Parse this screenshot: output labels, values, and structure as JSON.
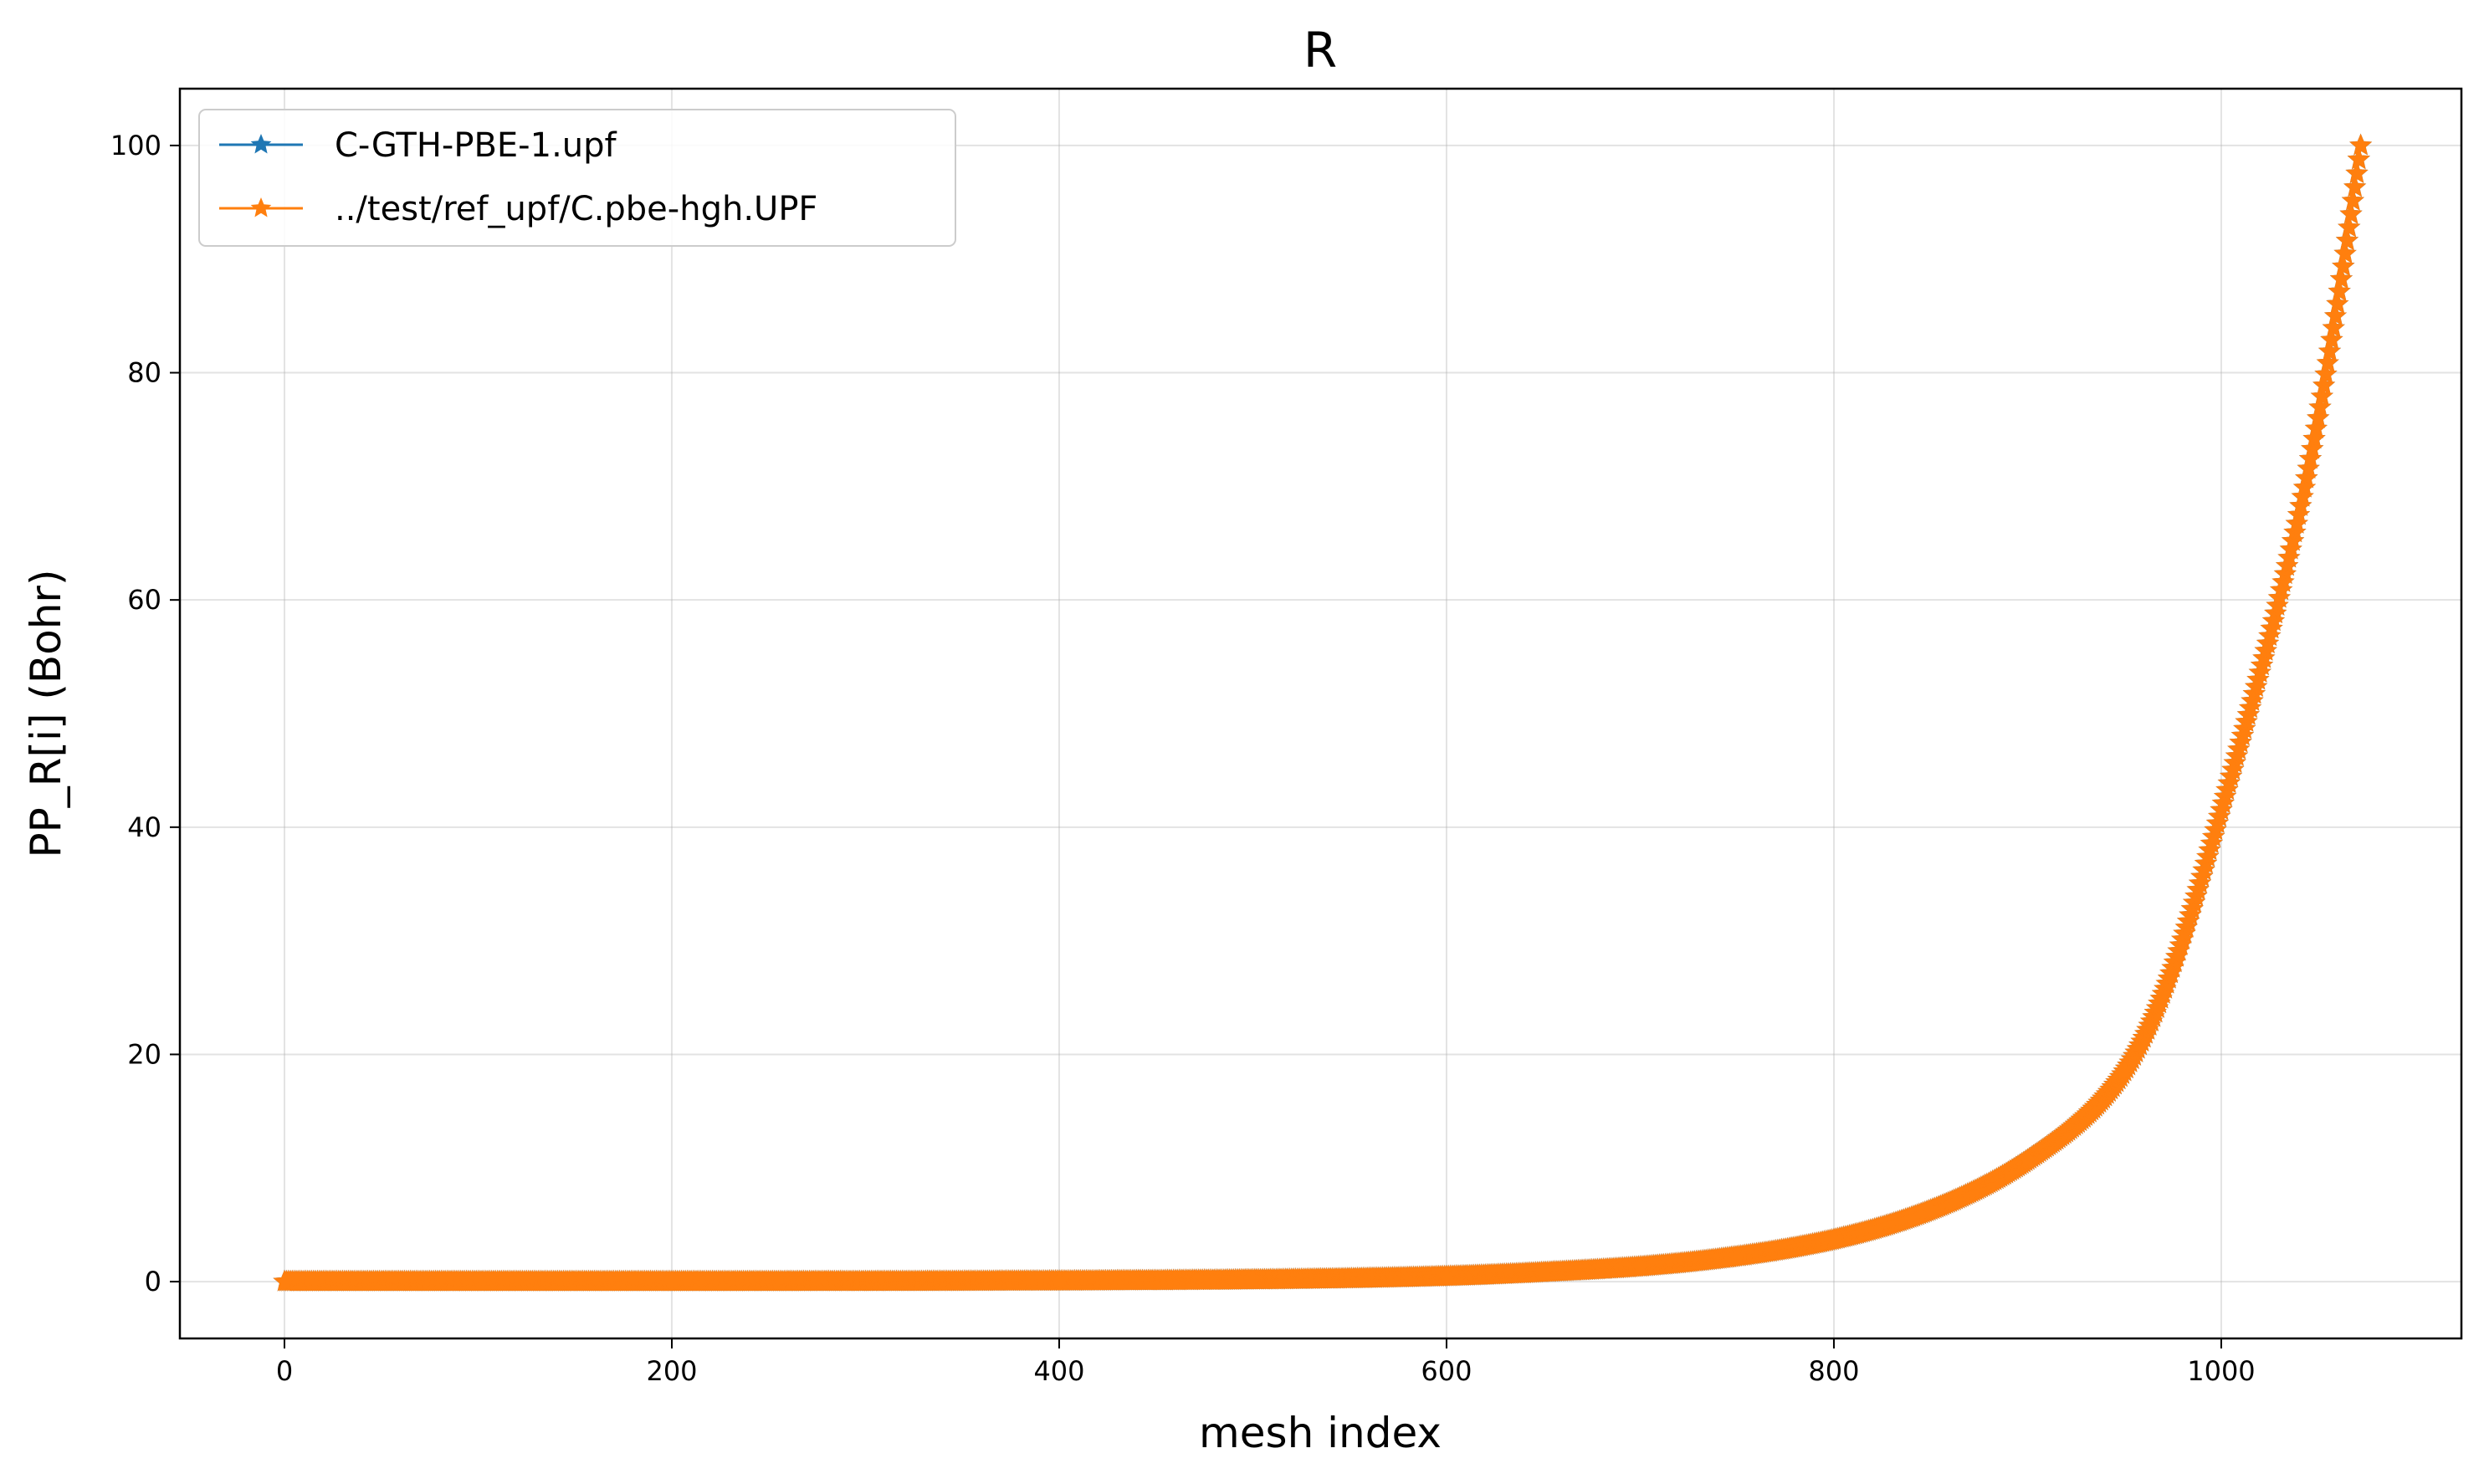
{
  "chart_data": {
    "type": "line",
    "title": "R",
    "xlabel": "mesh index",
    "ylabel": "PP_R[i] (Bohr)",
    "xlim": [
      -54,
      1124
    ],
    "ylim": [
      -5,
      105
    ],
    "xticks": [
      0,
      200,
      400,
      600,
      800,
      1000
    ],
    "yticks": [
      0,
      20,
      40,
      60,
      80,
      100
    ],
    "grid": true,
    "legend_position": "top-left",
    "marker": "star",
    "x_range": [
      0,
      1072
    ],
    "series": [
      {
        "name": "C-GTH-PBE-1.upf",
        "color": "#1f77b4",
        "x": [
          0,
          200,
          400,
          500,
          600,
          650,
          700,
          750,
          800,
          850,
          900,
          950,
          1000,
          1050,
          1072
        ],
        "values": [
          0.0,
          0.0,
          0.05,
          0.15,
          0.45,
          0.8,
          1.3,
          2.2,
          3.7,
          6.3,
          10.7,
          18.5,
          41.5,
          76.0,
          100.0
        ]
      },
      {
        "name": "../test/ref_upf/C.pbe-hgh.UPF",
        "color": "#ff7f0e",
        "x": [
          0,
          200,
          400,
          500,
          600,
          650,
          700,
          750,
          800,
          850,
          900,
          950,
          1000,
          1050,
          1072
        ],
        "values": [
          0.0,
          0.0,
          0.05,
          0.15,
          0.45,
          0.8,
          1.3,
          2.2,
          3.7,
          6.3,
          10.7,
          18.5,
          41.5,
          76.0,
          100.0
        ]
      }
    ]
  }
}
